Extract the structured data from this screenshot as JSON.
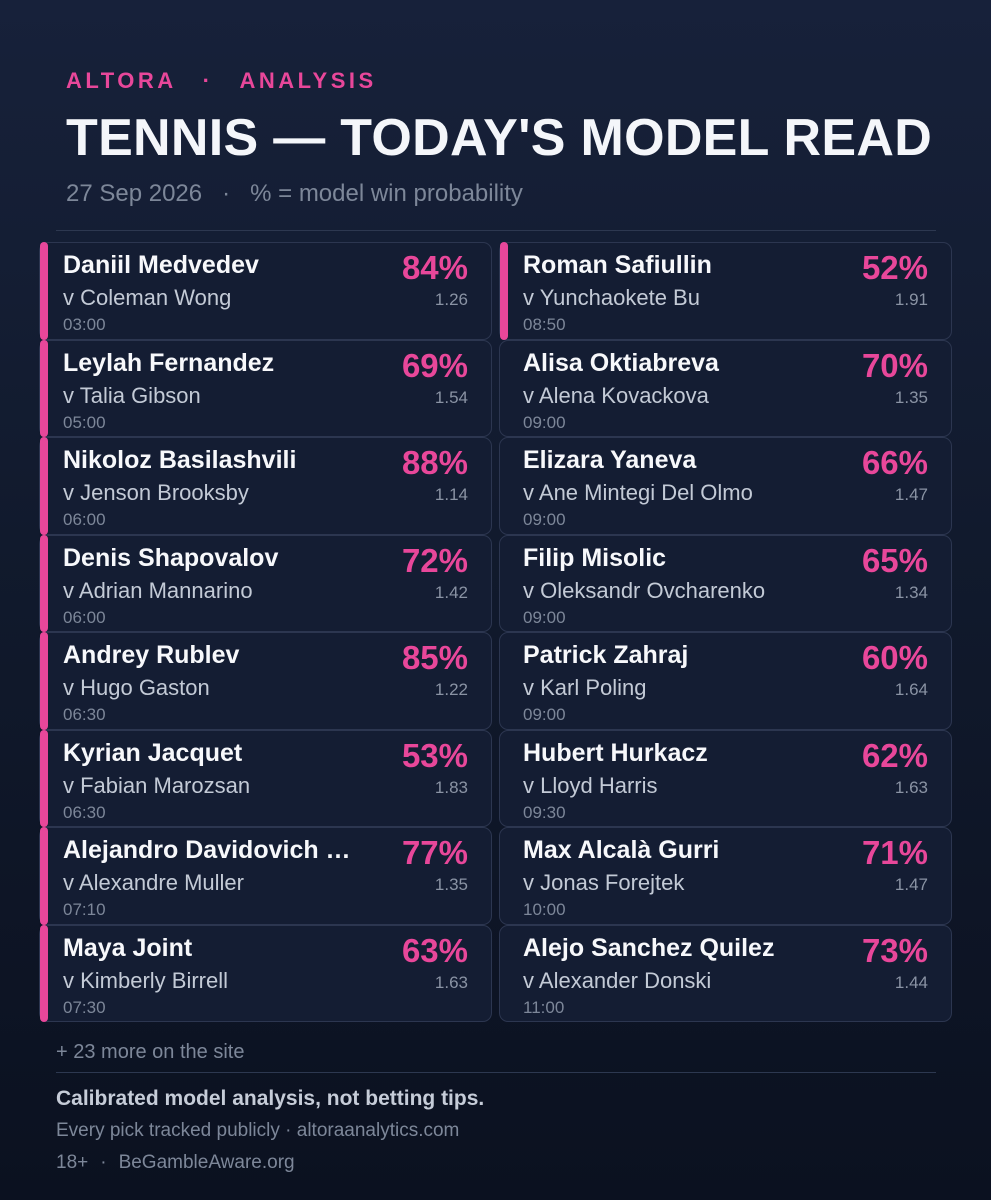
{
  "header": {
    "brand_left": "ALTORA",
    "brand_sep": "·",
    "brand_right": "ANALYSIS",
    "title": "TENNIS — TODAY'S MODEL READ",
    "date": "27 Sep 2026",
    "sub_sep": "·",
    "legend": "% = model win probability"
  },
  "accent_color": "#e8479a",
  "left_column": [
    {
      "player": "Daniil Medvedev",
      "opponent": "v Coleman Wong",
      "time": "03:00",
      "pct": "84%",
      "odds": "1.26",
      "highlighted": true
    },
    {
      "player": "Leylah Fernandez",
      "opponent": "v Talia Gibson",
      "time": "05:00",
      "pct": "69%",
      "odds": "1.54",
      "highlighted": true
    },
    {
      "player": "Nikoloz Basilashvili",
      "opponent": "v Jenson Brooksby",
      "time": "06:00",
      "pct": "88%",
      "odds": "1.14",
      "highlighted": true
    },
    {
      "player": "Denis Shapovalov",
      "opponent": "v Adrian Mannarino",
      "time": "06:00",
      "pct": "72%",
      "odds": "1.42",
      "highlighted": true
    },
    {
      "player": "Andrey Rublev",
      "opponent": "v Hugo Gaston",
      "time": "06:30",
      "pct": "85%",
      "odds": "1.22",
      "highlighted": true
    },
    {
      "player": "Kyrian Jacquet",
      "opponent": "v Fabian Marozsan",
      "time": "06:30",
      "pct": "53%",
      "odds": "1.83",
      "highlighted": true
    },
    {
      "player": "Alejandro Davidovich …",
      "opponent": "v Alexandre Muller",
      "time": "07:10",
      "pct": "77%",
      "odds": "1.35",
      "highlighted": true
    },
    {
      "player": "Maya Joint",
      "opponent": "v Kimberly Birrell",
      "time": "07:30",
      "pct": "63%",
      "odds": "1.63",
      "highlighted": true
    }
  ],
  "right_column": [
    {
      "player": "Roman Safiullin",
      "opponent": "v Yunchaokete Bu",
      "time": "08:50",
      "pct": "52%",
      "odds": "1.91",
      "highlighted": true
    },
    {
      "player": "Alisa Oktiabreva",
      "opponent": "v Alena Kovackova",
      "time": "09:00",
      "pct": "70%",
      "odds": "1.35",
      "highlighted": false
    },
    {
      "player": "Elizara Yaneva",
      "opponent": "v Ane Mintegi Del Olmo",
      "time": "09:00",
      "pct": "66%",
      "odds": "1.47",
      "highlighted": false
    },
    {
      "player": "Filip Misolic",
      "opponent": "v Oleksandr Ovcharenko",
      "time": "09:00",
      "pct": "65%",
      "odds": "1.34",
      "highlighted": false
    },
    {
      "player": "Patrick Zahraj",
      "opponent": "v Karl Poling",
      "time": "09:00",
      "pct": "60%",
      "odds": "1.64",
      "highlighted": false
    },
    {
      "player": "Hubert Hurkacz",
      "opponent": "v Lloyd Harris",
      "time": "09:30",
      "pct": "62%",
      "odds": "1.63",
      "highlighted": false
    },
    {
      "player": "Max Alcalà Gurri",
      "opponent": "v Jonas Forejtek",
      "time": "10:00",
      "pct": "71%",
      "odds": "1.47",
      "highlighted": false
    },
    {
      "player": "Alejo Sanchez Quilez",
      "opponent": "v Alexander Donski",
      "time": "11:00",
      "pct": "73%",
      "odds": "1.44",
      "highlighted": false
    }
  ],
  "footer": {
    "more": "+ 23 more on the site",
    "disclaimer": "Calibrated model analysis, not betting tips.",
    "tracked": "Every pick tracked publicly · altoraanalytics.com",
    "age": "18+",
    "age_sep": "·",
    "gamble": "BeGambleAware.org"
  }
}
